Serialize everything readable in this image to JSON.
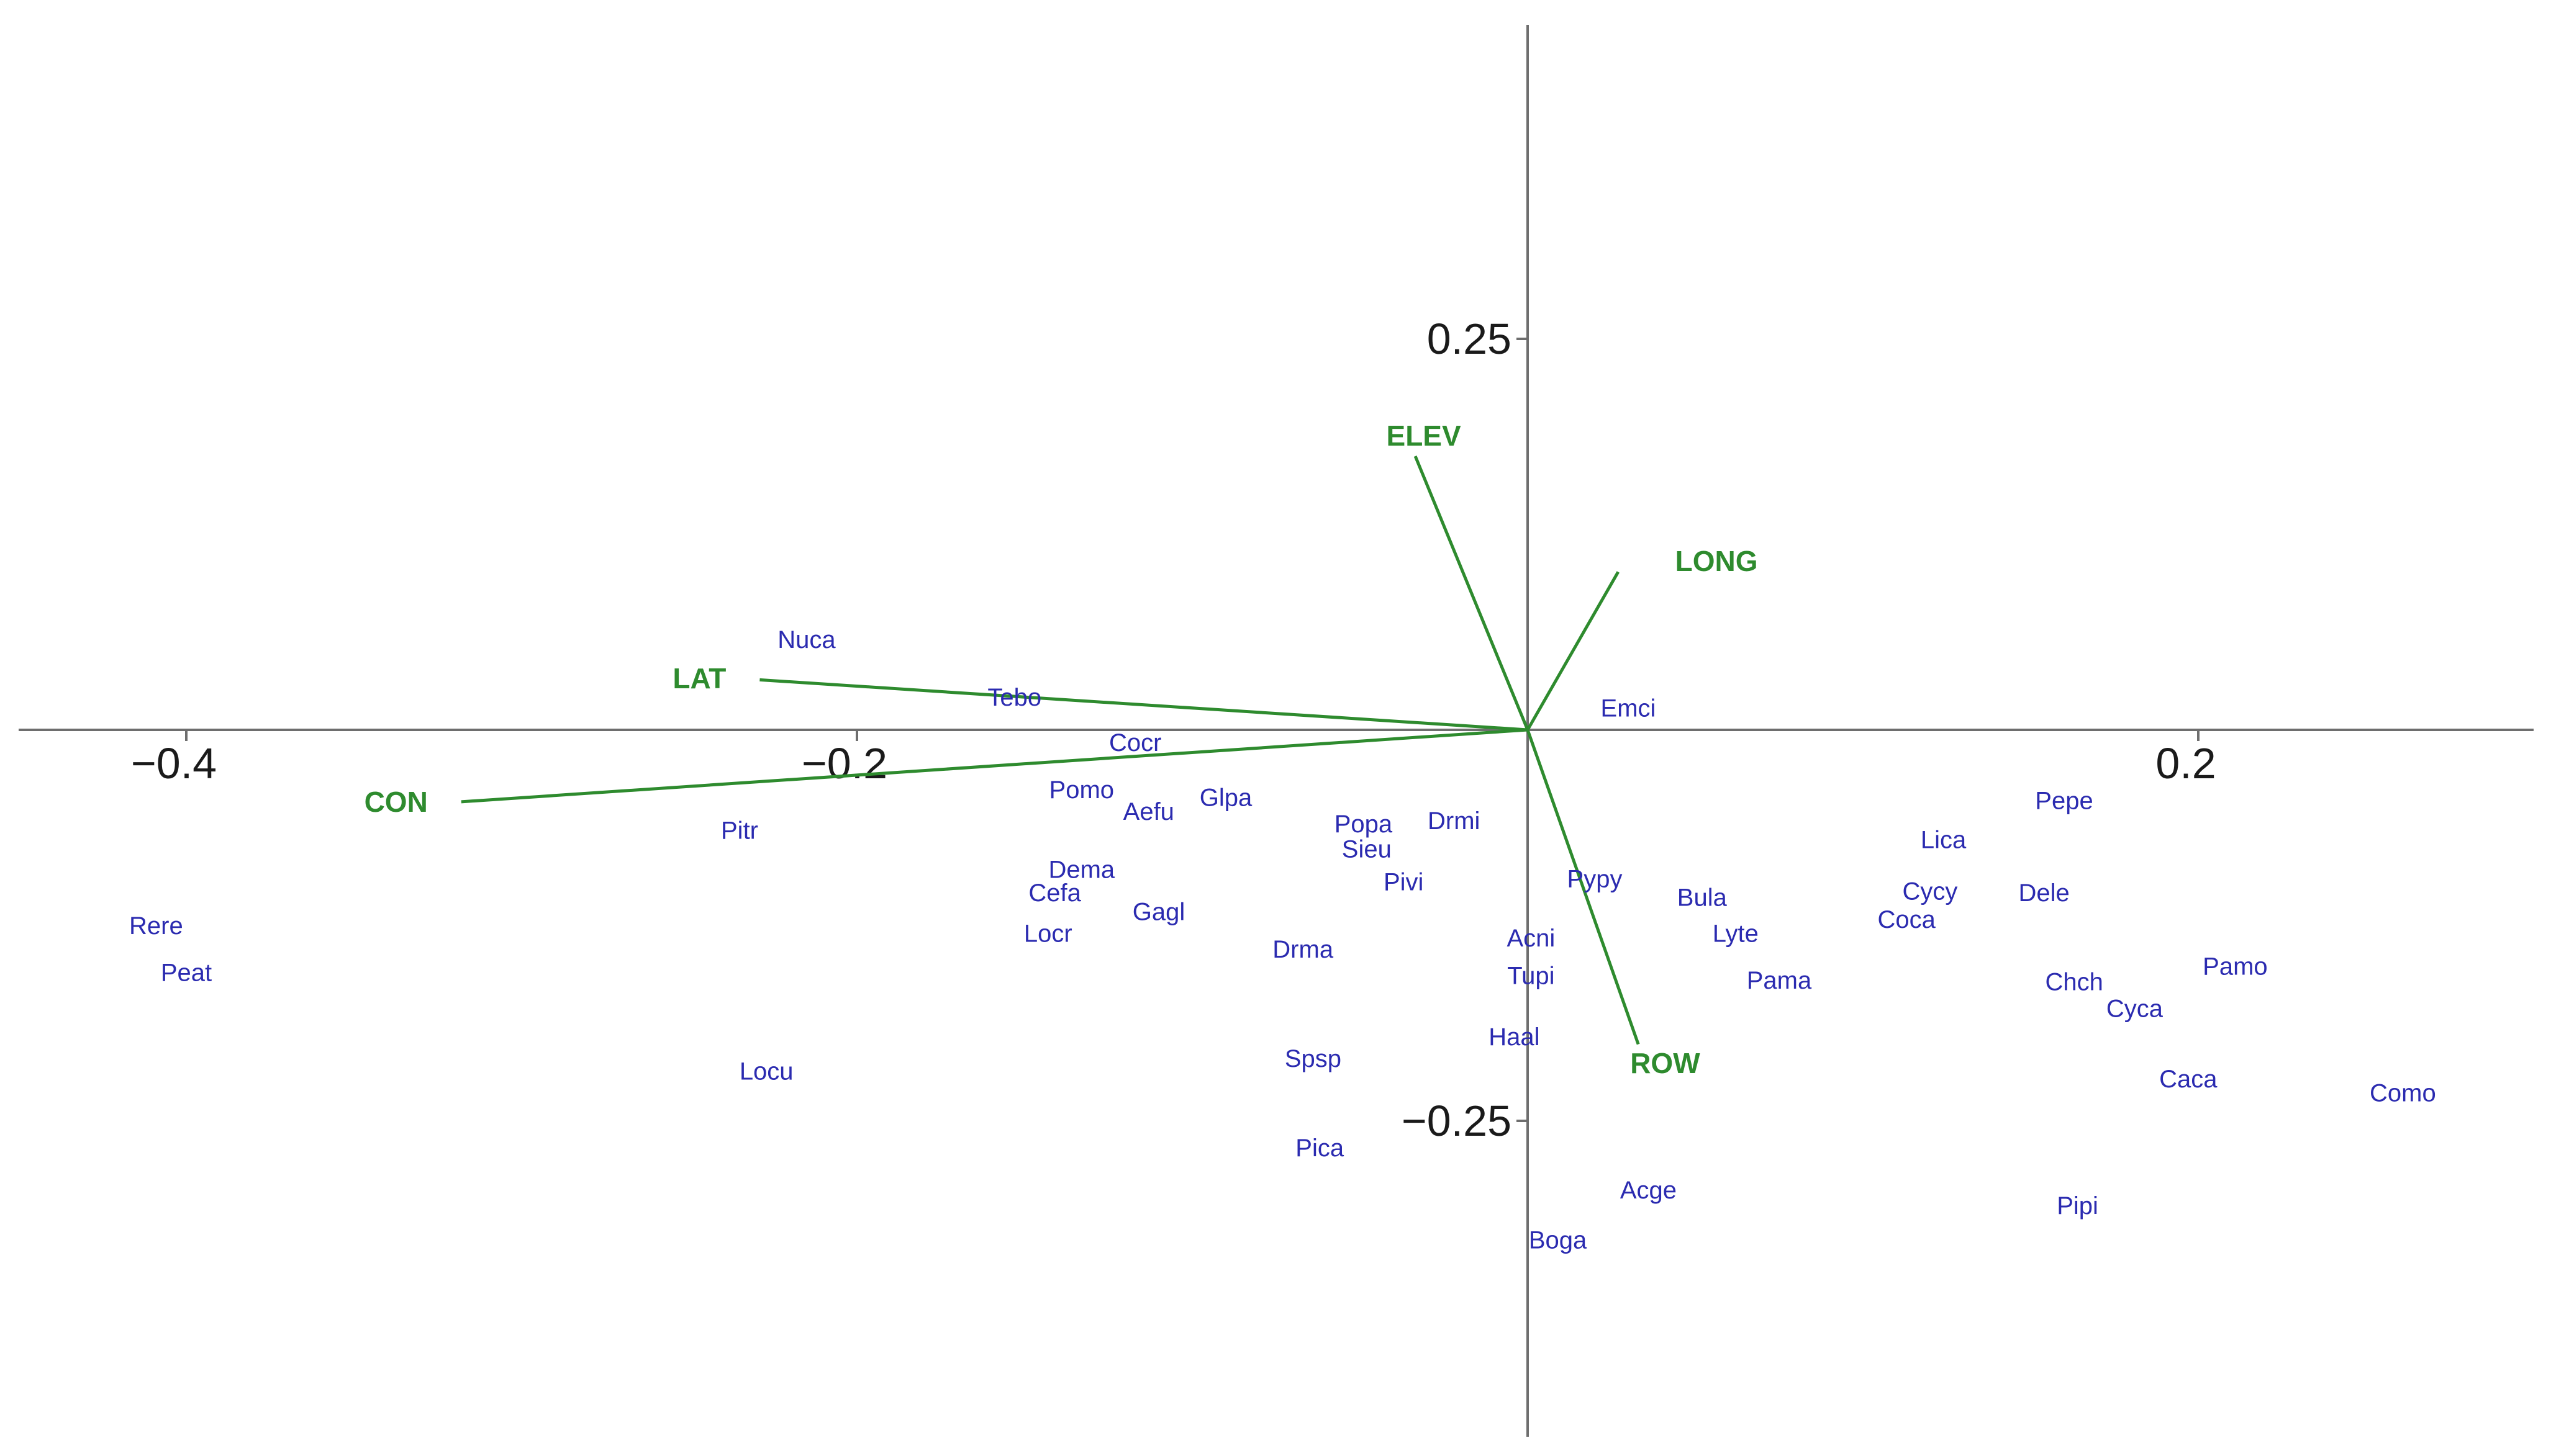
{
  "colors": {
    "axis": "#6e6e6e",
    "species": "#2b2bb0",
    "arrows": "#2e8b2e",
    "tick_text": "#1a1a1a"
  },
  "chart_data": {
    "type": "scatter",
    "title": "",
    "xlabel": "",
    "ylabel": "",
    "xlim": [
      -0.45,
      0.31
    ],
    "ylim": [
      -0.455,
      0.45
    ],
    "grid": false,
    "x_ticks": [
      {
        "value": -0.4,
        "label": "−0.4"
      },
      {
        "value": -0.2,
        "label": "−0.2"
      },
      {
        "value": 0.2,
        "label": "0.2"
      }
    ],
    "y_ticks": [
      {
        "value": 0.25,
        "label": "0.25"
      },
      {
        "value": -0.25,
        "label": "−0.25"
      }
    ],
    "arrows": [
      {
        "name": "ELEV",
        "x": -0.0335,
        "y": 0.175,
        "label_x": -0.031,
        "label_y": 0.188
      },
      {
        "name": "LONG",
        "x": 0.027,
        "y": 0.101,
        "label_x": 0.044,
        "label_y": 0.108
      },
      {
        "name": "LAT",
        "x": -0.229,
        "y": 0.032,
        "label_x": -0.239,
        "label_y": 0.033
      },
      {
        "name": "CON",
        "x": -0.318,
        "y": -0.046,
        "label_x": -0.328,
        "label_y": -0.046
      },
      {
        "name": "ROW",
        "x": 0.033,
        "y": -0.201,
        "label_x": 0.041,
        "label_y": -0.213
      }
    ],
    "points": [
      {
        "label": "Nuca",
        "x": -0.215,
        "y": 0.058
      },
      {
        "label": "Tebo",
        "x": -0.153,
        "y": 0.021
      },
      {
        "label": "Emci",
        "x": 0.03,
        "y": 0.014
      },
      {
        "label": "Cocr",
        "x": -0.117,
        "y": -0.008
      },
      {
        "label": "Pomo",
        "x": -0.133,
        "y": -0.038
      },
      {
        "label": "Aefu",
        "x": -0.113,
        "y": -0.052
      },
      {
        "label": "Glpa",
        "x": -0.09,
        "y": -0.043
      },
      {
        "label": "Pitr",
        "x": -0.235,
        "y": -0.064
      },
      {
        "label": "Popa",
        "x": -0.049,
        "y": -0.06
      },
      {
        "label": "Sieu",
        "x": -0.048,
        "y": -0.076
      },
      {
        "label": "Drmi",
        "x": -0.022,
        "y": -0.058
      },
      {
        "label": "Pivi",
        "x": -0.037,
        "y": -0.097
      },
      {
        "label": "Dema",
        "x": -0.133,
        "y": -0.089
      },
      {
        "label": "Cefa",
        "x": -0.141,
        "y": -0.104
      },
      {
        "label": "Gagl",
        "x": -0.11,
        "y": -0.116
      },
      {
        "label": "Locr",
        "x": -0.143,
        "y": -0.13
      },
      {
        "label": "Drma",
        "x": -0.067,
        "y": -0.14
      },
      {
        "label": "Pypy",
        "x": 0.02,
        "y": -0.095
      },
      {
        "label": "Bula",
        "x": 0.052,
        "y": -0.107
      },
      {
        "label": "Lyte",
        "x": 0.062,
        "y": -0.13
      },
      {
        "label": "Acni",
        "x": 0.001,
        "y": -0.133
      },
      {
        "label": "Tupi",
        "x": 0.001,
        "y": -0.157
      },
      {
        "label": "Pama",
        "x": 0.075,
        "y": -0.16
      },
      {
        "label": "Haal",
        "x": -0.004,
        "y": -0.196
      },
      {
        "label": "Spsp",
        "x": -0.064,
        "y": -0.21
      },
      {
        "label": "Pica",
        "x": -0.062,
        "y": -0.267
      },
      {
        "label": "Acge",
        "x": 0.036,
        "y": -0.294
      },
      {
        "label": "Boga",
        "x": 0.009,
        "y": -0.326
      },
      {
        "label": "Rere",
        "x": -0.409,
        "y": -0.125
      },
      {
        "label": "Peat",
        "x": -0.4,
        "y": -0.155
      },
      {
        "label": "Locu",
        "x": -0.227,
        "y": -0.218
      },
      {
        "label": "Pepe",
        "x": 0.16,
        "y": -0.045
      },
      {
        "label": "Lica",
        "x": 0.124,
        "y": -0.07
      },
      {
        "label": "Cycy",
        "x": 0.12,
        "y": -0.103
      },
      {
        "label": "Dele",
        "x": 0.154,
        "y": -0.104
      },
      {
        "label": "Coca",
        "x": 0.113,
        "y": -0.121
      },
      {
        "label": "Chch",
        "x": 0.163,
        "y": -0.161
      },
      {
        "label": "Cyca",
        "x": 0.181,
        "y": -0.178
      },
      {
        "label": "Pamo",
        "x": 0.211,
        "y": -0.151
      },
      {
        "label": "Caca",
        "x": 0.197,
        "y": -0.223
      },
      {
        "label": "Como",
        "x": 0.261,
        "y": -0.232
      },
      {
        "label": "Pipi",
        "x": 0.164,
        "y": -0.304
      }
    ]
  }
}
